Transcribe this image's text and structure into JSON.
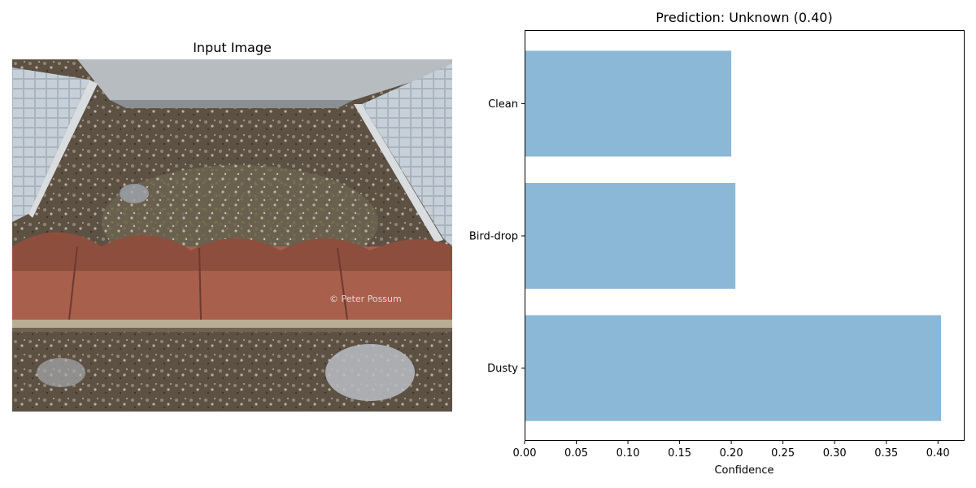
{
  "image_panel": {
    "title": "Input Image",
    "photo_subject": "soiled solar panels with bird droppings and debris over roof tiles",
    "watermark": "© Peter Possum"
  },
  "chart_data": {
    "type": "bar",
    "orientation": "horizontal",
    "title": "Prediction: Unknown (0.40)",
    "xlabel": "Confidence",
    "ylabel": "",
    "categories": [
      "Dusty",
      "Bird-drop",
      "Clean"
    ],
    "values": [
      0.403,
      0.204,
      0.2
    ],
    "xlim": [
      0,
      0.425
    ],
    "xticks": [
      "0.00",
      "0.05",
      "0.10",
      "0.15",
      "0.20",
      "0.25",
      "0.30",
      "0.35",
      "0.40"
    ],
    "bar_color": "#8cb8d8",
    "grid": false
  }
}
